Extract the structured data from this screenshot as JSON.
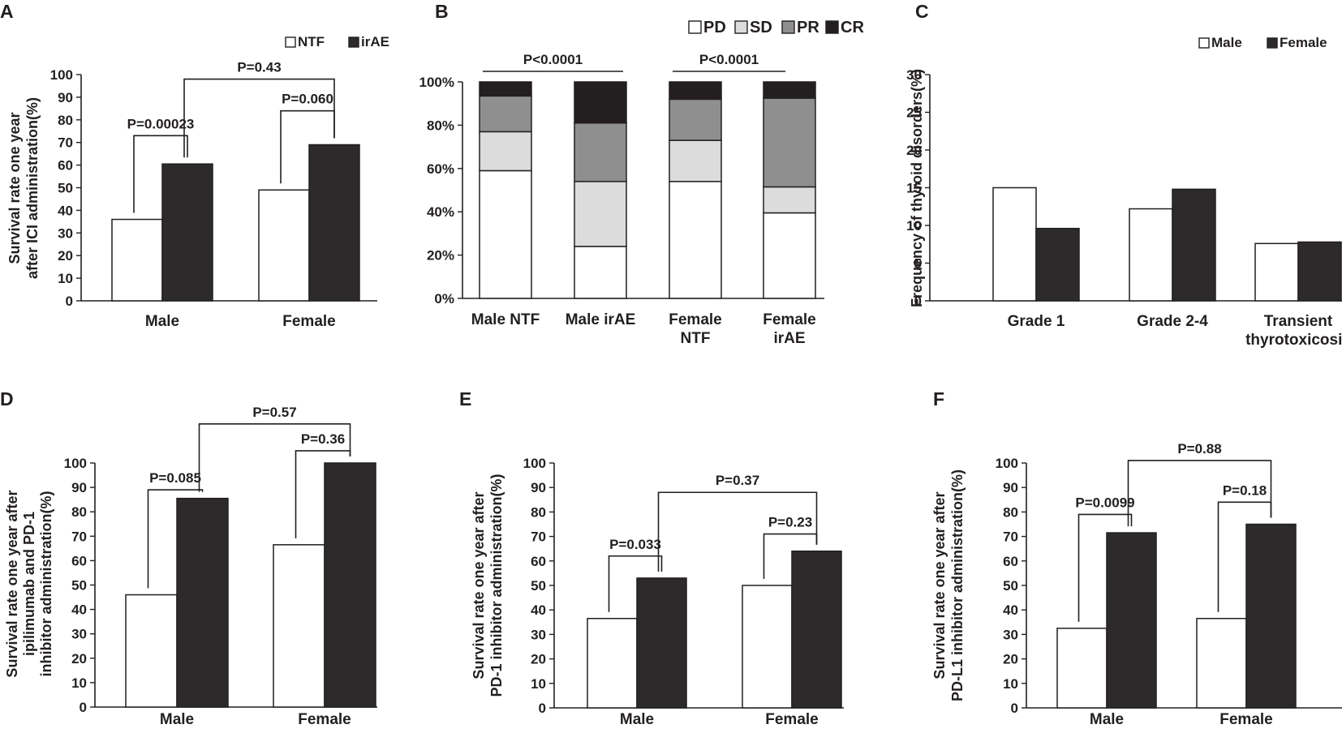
{
  "chart_data": [
    {
      "panel": "A",
      "type": "bar",
      "categories": [
        "Male",
        "Female"
      ],
      "series": [
        {
          "name": "NTF",
          "color": "#ffffff",
          "values": [
            36,
            49
          ]
        },
        {
          "name": "irAE",
          "color": "#2d2a2b",
          "values": [
            60.5,
            69
          ]
        }
      ],
      "ylabel": "Survival rate one year\nafter ICI administration(%)",
      "ylim": [
        0,
        100
      ],
      "yticks": [
        0,
        10,
        20,
        30,
        40,
        50,
        60,
        70,
        80,
        90,
        100
      ],
      "legend": [
        "NTF",
        "irAE"
      ],
      "annotations": [
        "P=0.00023",
        "P=0.060",
        "P=0.43"
      ]
    },
    {
      "panel": "B",
      "type": "bar",
      "stacked": true,
      "categories": [
        "Male NTF",
        "Male irAE",
        "Female\nNTF",
        "Female\nirAE"
      ],
      "series": [
        {
          "name": "PD",
          "color": "#ffffff",
          "values": [
            59,
            24,
            54,
            39.5
          ]
        },
        {
          "name": "SD",
          "color": "#dcdcdc",
          "values": [
            18,
            30,
            19,
            12
          ]
        },
        {
          "name": "PR",
          "color": "#8f8f8f",
          "values": [
            16.5,
            27,
            19,
            41
          ]
        },
        {
          "name": "CR",
          "color": "#231f20",
          "values": [
            6.5,
            19,
            8,
            7.5
          ]
        }
      ],
      "ylim": [
        0,
        100
      ],
      "yticks": [
        "0%",
        "20%",
        "40%",
        "60%",
        "80%",
        "100%"
      ],
      "legend": [
        "PD",
        "SD",
        "PR",
        "CR"
      ],
      "annotations": [
        "P<0.0001",
        "P<0.0001"
      ]
    },
    {
      "panel": "C",
      "type": "bar",
      "categories": [
        "Grade 1",
        "Grade 2-4",
        "Transient\nthyrotoxicosis"
      ],
      "series": [
        {
          "name": "Male",
          "color": "#ffffff",
          "values": [
            15,
            12.2,
            7.6
          ]
        },
        {
          "name": "Female",
          "color": "#2d2a2b",
          "values": [
            9.6,
            14.8,
            7.8
          ]
        }
      ],
      "ylabel": "Frequency of thyroid disorders(%)",
      "ylim": [
        0,
        30
      ],
      "yticks": [
        0,
        5,
        10,
        15,
        20,
        25,
        30
      ],
      "legend": [
        "Male",
        "Female"
      ]
    },
    {
      "panel": "D",
      "type": "bar",
      "categories": [
        "Male",
        "Female"
      ],
      "series": [
        {
          "name": "NTF",
          "color": "#ffffff",
          "values": [
            46,
            66.5
          ]
        },
        {
          "name": "irAE",
          "color": "#2d2a2b",
          "values": [
            85.5,
            100
          ]
        }
      ],
      "ylabel": "Survival rate one year after\nipilimumab and PD-1\ninhibitor administration(%)",
      "ylim": [
        0,
        100
      ],
      "yticks": [
        0,
        10,
        20,
        30,
        40,
        50,
        60,
        70,
        80,
        90,
        100
      ],
      "annotations": [
        "P=0.085",
        "P=0.36",
        "P=0.57"
      ]
    },
    {
      "panel": "E",
      "type": "bar",
      "categories": [
        "Male",
        "Female"
      ],
      "series": [
        {
          "name": "NTF",
          "color": "#ffffff",
          "values": [
            36.5,
            50
          ]
        },
        {
          "name": "irAE",
          "color": "#2d2a2b",
          "values": [
            53,
            64
          ]
        }
      ],
      "ylabel": "Survival rate one year after\nPD-1 inhibitor administration(%)",
      "ylim": [
        0,
        100
      ],
      "yticks": [
        0,
        10,
        20,
        30,
        40,
        50,
        60,
        70,
        80,
        90,
        100
      ],
      "annotations": [
        "P=0.033",
        "P=0.23",
        "P=0.37"
      ]
    },
    {
      "panel": "F",
      "type": "bar",
      "categories": [
        "Male",
        "Female"
      ],
      "series": [
        {
          "name": "NTF",
          "color": "#ffffff",
          "values": [
            32.5,
            36.5
          ]
        },
        {
          "name": "irAE",
          "color": "#2d2a2b",
          "values": [
            71.5,
            75
          ]
        }
      ],
      "ylabel": "Survival rate one year after\nPD-L1 inhibitor administration(%)",
      "ylim": [
        0,
        100
      ],
      "yticks": [
        0,
        10,
        20,
        30,
        40,
        50,
        60,
        70,
        80,
        90,
        100
      ],
      "annotations": [
        "P=0.0099",
        "P=0.18",
        "P=0.88"
      ]
    }
  ]
}
